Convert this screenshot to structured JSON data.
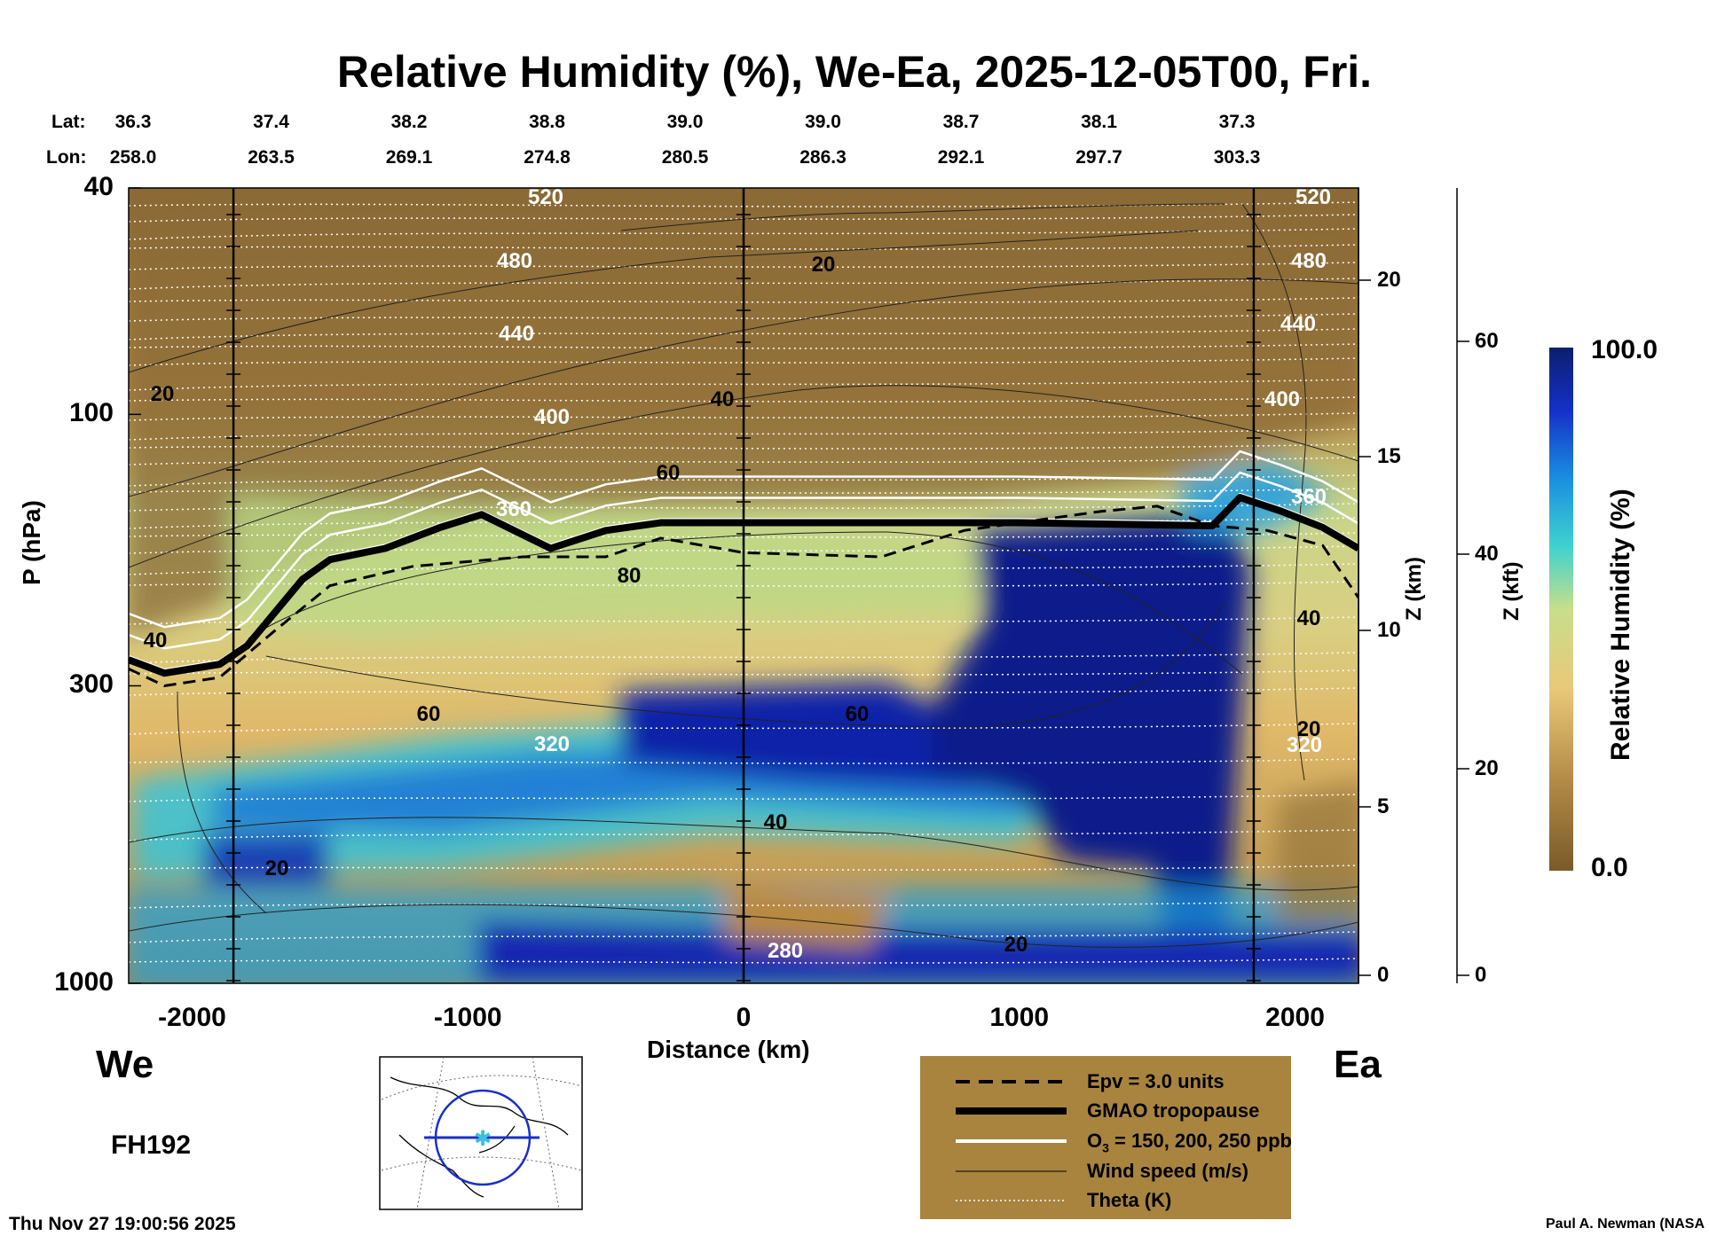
{
  "title": "Relative Humidity (%), We-Ea, 2025-12-05T00, Fri.",
  "header": {
    "lat_label": "Lat:",
    "lon_label": "Lon:",
    "lats": [
      "36.3",
      "37.4",
      "38.2",
      "38.8",
      "39.0",
      "39.0",
      "38.7",
      "38.1",
      "37.3"
    ],
    "lons": [
      "258.0",
      "263.5",
      "269.1",
      "274.8",
      "280.5",
      "286.3",
      "292.1",
      "297.7",
      "303.3"
    ]
  },
  "direction": {
    "west": "We",
    "east": "Ea"
  },
  "forecast_hour": "FH192",
  "timestamp": "Thu Nov 27 19:00:56 2025",
  "credit": "Paul A. Newman (NASA",
  "colorbar": {
    "max_label": "100.0",
    "min_label": "0.0",
    "title": "Relative Humidity (%)"
  },
  "legend": {
    "epv": "Epv = 3.0 units",
    "tropopause": "GMAO tropopause",
    "ozone_prefix": "O",
    "ozone_sub": "3",
    "ozone_suffix": " = 150, 200, 250 ppb",
    "wind": "Wind speed (m/s)",
    "theta": "Theta (K)"
  },
  "colors": {
    "dry": "#8a6a35",
    "moist": "#0a2a8a",
    "legend_bg": "#a8843f"
  },
  "chart_data": {
    "type": "heatmap",
    "xlabel": "Distance (km)",
    "ylabel": "P (hPa)",
    "y2label": "Z (km)",
    "y3label": "Z (kft)",
    "x_ticks": [
      "-2000",
      "-1000",
      "0",
      "1000",
      "2000"
    ],
    "y_ticks": [
      "40",
      "100",
      "300",
      "1000"
    ],
    "z_km_ticks": [
      "20",
      "15",
      "10",
      "5",
      "0"
    ],
    "z_kft_ticks": [
      "60",
      "40",
      "20",
      "0"
    ],
    "xlim": [
      -2230,
      2230
    ],
    "ylim_hPa": [
      1000,
      40
    ],
    "y_scale": "log",
    "variable": "Relative Humidity (%)",
    "clim": [
      0,
      100
    ],
    "theta_labels": [
      "520",
      "480",
      "440",
      "400",
      "360",
      "320",
      "280"
    ],
    "wind_labels": [
      "20",
      "40",
      "60",
      "80",
      "60",
      "40",
      "20",
      "20",
      "40",
      "40",
      "20",
      "20"
    ],
    "tropopause": [
      [
        -2230,
        270
      ],
      [
        -2100,
        285
      ],
      [
        -1900,
        275
      ],
      [
        -1800,
        255
      ],
      [
        -1600,
        195
      ],
      [
        -1500,
        180
      ],
      [
        -1300,
        172
      ],
      [
        -1100,
        158
      ],
      [
        -950,
        150
      ],
      [
        -700,
        172
      ],
      [
        -500,
        160
      ],
      [
        -300,
        155
      ],
      [
        0,
        155
      ],
      [
        1000,
        155
      ],
      [
        1700,
        157
      ],
      [
        1800,
        140
      ],
      [
        1950,
        148
      ],
      [
        2100,
        158
      ],
      [
        2230,
        172
      ]
    ],
    "epv_contour": [
      [
        -2230,
        280
      ],
      [
        -2100,
        300
      ],
      [
        -1900,
        290
      ],
      [
        -1700,
        240
      ],
      [
        -1500,
        200
      ],
      [
        -1200,
        185
      ],
      [
        -800,
        178
      ],
      [
        -500,
        178
      ],
      [
        -300,
        165
      ],
      [
        0,
        175
      ],
      [
        500,
        178
      ],
      [
        800,
        160
      ],
      [
        1000,
        155
      ],
      [
        1300,
        148
      ],
      [
        1500,
        145
      ],
      [
        1700,
        157
      ],
      [
        1900,
        160
      ],
      [
        2100,
        170
      ],
      [
        2230,
        210
      ]
    ],
    "vertical_lines_km": [
      -1850,
      0,
      1850
    ]
  }
}
